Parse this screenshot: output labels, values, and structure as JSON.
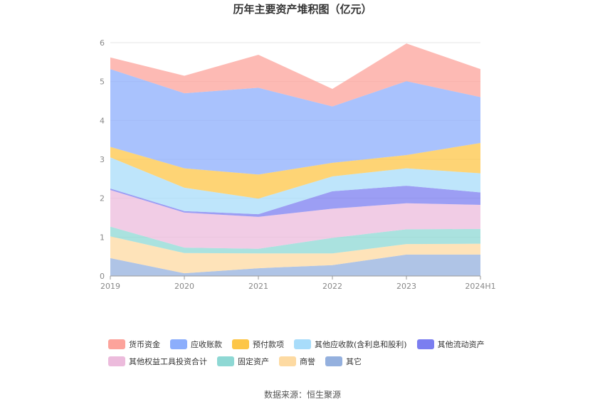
{
  "chart_data": {
    "type": "area",
    "title": "历年主要资产堆积图（亿元）",
    "source_label": "数据来源：恒生聚源",
    "categories": [
      "2019",
      "2020",
      "2021",
      "2022",
      "2023",
      "2024H1"
    ],
    "ylim": [
      0,
      6
    ],
    "yticks": [
      "0",
      "1",
      "2",
      "3",
      "4",
      "5",
      "6"
    ],
    "grid": true,
    "legend_position": "bottom",
    "stack_order_bottom_to_top": [
      "其它",
      "商誉",
      "固定资产",
      "其他权益工具投资合计",
      "其他流动资产",
      "其他应收款(含利息和股利)",
      "预付款项",
      "应收账款",
      "货币资金"
    ],
    "series": [
      {
        "name": "货币资金",
        "color": "#fca39b",
        "values": [
          0.3,
          0.45,
          0.85,
          0.45,
          0.97,
          0.72
        ]
      },
      {
        "name": "应收账款",
        "color": "#8caefc",
        "values": [
          2.0,
          1.93,
          2.23,
          1.45,
          1.9,
          1.18
        ]
      },
      {
        "name": "预付款项",
        "color": "#fdc647",
        "values": [
          0.27,
          0.5,
          0.62,
          0.35,
          0.34,
          0.78
        ]
      },
      {
        "name": "其他应收款(含利息和股利)",
        "color": "#a8dcfa",
        "values": [
          0.8,
          0.6,
          0.4,
          0.38,
          0.45,
          0.49
        ]
      },
      {
        "name": "其他流动资产",
        "color": "#7b7ef0",
        "values": [
          0.04,
          0.04,
          0.07,
          0.45,
          0.45,
          0.32
        ]
      },
      {
        "name": "其他权益工具投资合计",
        "color": "#ecbbdc",
        "values": [
          0.94,
          0.9,
          0.82,
          0.75,
          0.67,
          0.62
        ]
      },
      {
        "name": "固定资产",
        "color": "#8ed8d4",
        "values": [
          0.25,
          0.14,
          0.12,
          0.4,
          0.38,
          0.38
        ]
      },
      {
        "name": "商誉",
        "color": "#fddaa2",
        "values": [
          0.56,
          0.52,
          0.38,
          0.3,
          0.27,
          0.28
        ]
      },
      {
        "name": "其它",
        "color": "#94b0de",
        "values": [
          0.46,
          0.07,
          0.2,
          0.28,
          0.55,
          0.55
        ]
      }
    ],
    "legend_rows": [
      [
        {
          "name": "货币资金",
          "color": "#fca39b"
        },
        {
          "name": "应收账款",
          "color": "#8caefc"
        },
        {
          "name": "预付款项",
          "color": "#fdc647"
        },
        {
          "name": "其他应收款(含利息和股利)",
          "color": "#a8dcfa"
        },
        {
          "name": "其他流动资产",
          "color": "#7b7ef0"
        }
      ],
      [
        {
          "name": "其他权益工具投资合计",
          "color": "#ecbbdc"
        },
        {
          "name": "固定资产",
          "color": "#8ed8d4"
        },
        {
          "name": "商誉",
          "color": "#fddaa2"
        },
        {
          "name": "其它",
          "color": "#94b0de"
        }
      ]
    ]
  }
}
